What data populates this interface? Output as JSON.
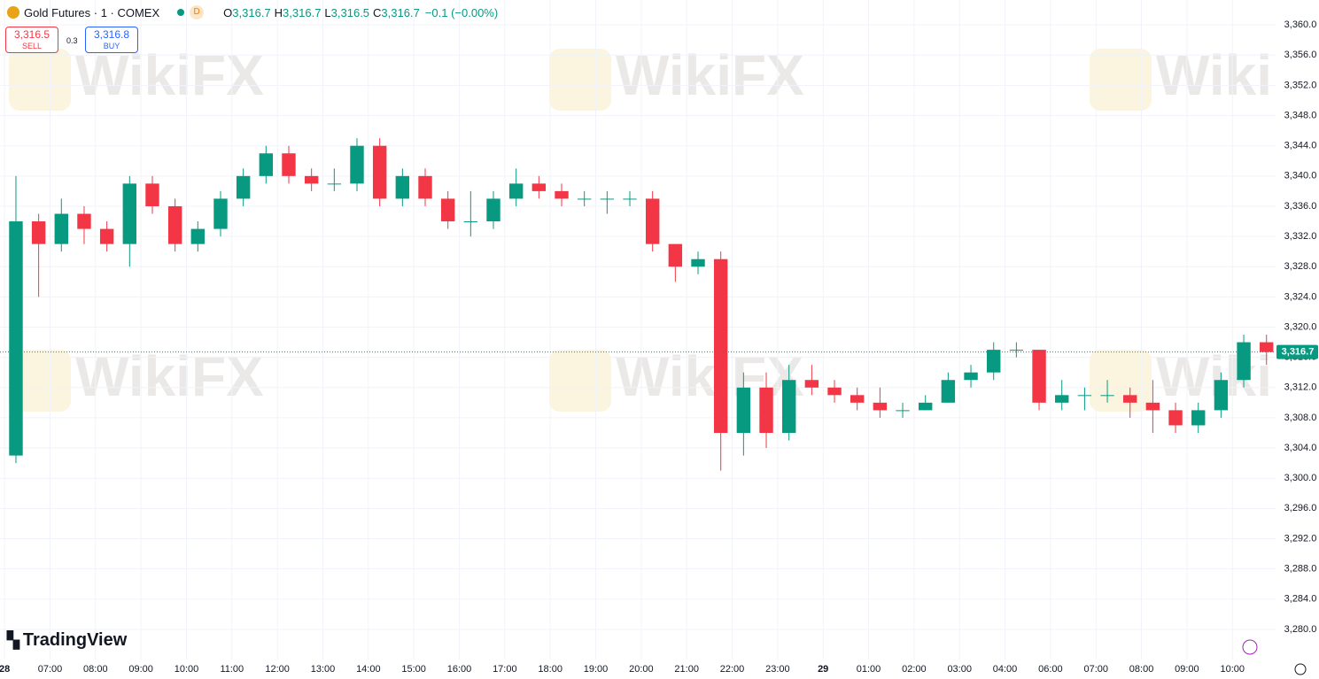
{
  "header": {
    "symbol": "Gold Futures · 1 · COMEX",
    "badge": "D",
    "ohlc": [
      {
        "key": "O",
        "text": "3,316.7"
      },
      {
        "key": "H",
        "text": "3,316.7"
      },
      {
        "key": "L",
        "text": "3,316.5"
      },
      {
        "key": "C",
        "text": "3,316.7"
      }
    ],
    "change": "−0.1 (−0.00%)"
  },
  "trade": {
    "sell_price": "3,316.5",
    "sell": "SELL",
    "spread": "0.3",
    "buy_price": "3,316.8",
    "buy": "BUY"
  },
  "branding": {
    "logo": "TradingView",
    "watermark": "WikiFX"
  },
  "chart_data": {
    "type": "candlestick",
    "up_color": "#089981",
    "down_color": "#f23645",
    "grid": true,
    "x": [
      0.25,
      0.75,
      1.25,
      1.75,
      2.25,
      2.75,
      3.25,
      3.75,
      4.25,
      4.75,
      5.25,
      5.75,
      6.25,
      6.75,
      7.25,
      7.75,
      8.25,
      8.75,
      9.25,
      9.75,
      10.25,
      10.75,
      11.25,
      11.75,
      12.25,
      12.75,
      13.25,
      13.75,
      14.25,
      14.75,
      15.25,
      15.75,
      16.25,
      16.75,
      17.25,
      17.75,
      18.25,
      18.75,
      19.25,
      19.75,
      20.25,
      20.75,
      21.25,
      21.75,
      22.25,
      22.75,
      23.25,
      23.75,
      24.25,
      24.75,
      25.25,
      25.75,
      26.25,
      26.75,
      27.25,
      27.75
    ],
    "open": [
      3303,
      3334,
      3331,
      3335,
      3333,
      3331,
      3339,
      3336,
      3331,
      3333,
      3337,
      3340,
      3343,
      3340,
      3339,
      3339,
      3344,
      3337,
      3340,
      3337,
      3334,
      3334,
      3337,
      3339,
      3338,
      3337,
      3337,
      3337,
      3337,
      3331,
      3328,
      3329,
      3306,
      3312,
      3306,
      3313,
      3312,
      3311,
      3310,
      3309,
      3309,
      3310,
      3313,
      3314,
      3317,
      3317,
      3310,
      3311,
      3311,
      3311,
      3310,
      3309,
      3307,
      3309,
      3313,
      3318
    ],
    "high": [
      3340,
      3335,
      3337,
      3336,
      3334,
      3340,
      3340,
      3337,
      3334,
      3338,
      3341,
      3344,
      3344,
      3341,
      3341,
      3345,
      3345,
      3341,
      3341,
      3338,
      3338,
      3338,
      3341,
      3340,
      3339,
      3338,
      3338,
      3338,
      3338,
      3331,
      3330,
      3330,
      3314,
      3314,
      3315,
      3315,
      3313,
      3312,
      3312,
      3310,
      3311,
      3314,
      3315,
      3318,
      3318,
      3317,
      3313,
      3312,
      3313,
      3312,
      3313,
      3310,
      3310,
      3314,
      3319,
      3319
    ],
    "low": [
      3302,
      3324,
      3330,
      3331,
      3330,
      3328,
      3335,
      3330,
      3330,
      3332,
      3336,
      3339,
      3339,
      3338,
      3338,
      3338,
      3336,
      3336,
      3336,
      3333,
      3332,
      3333,
      3336,
      3337,
      3336,
      3336,
      3335,
      3336,
      3330,
      3326,
      3327,
      3301,
      3303,
      3304,
      3305,
      3311,
      3310,
      3309,
      3308,
      3308,
      3309,
      3310,
      3312,
      3313,
      3316,
      3309,
      3309,
      3309,
      3310,
      3308,
      3306,
      3306,
      3306,
      3308,
      3312,
      3315
    ],
    "close": [
      3334,
      3331,
      3335,
      3333,
      3331,
      3339,
      3336,
      3331,
      3333,
      3337,
      3340,
      3343,
      3340,
      3339,
      3339,
      3344,
      3337,
      3340,
      3337,
      3334,
      3334,
      3337,
      3339,
      3338,
      3337,
      3337,
      3337,
      3337,
      3331,
      3328,
      3329,
      3306,
      3312,
      3306,
      3313,
      3312,
      3311,
      3310,
      3309,
      3309,
      3310,
      3313,
      3314,
      3317,
      3317,
      3310,
      3311,
      3311,
      3311,
      3310,
      3309,
      3307,
      3309,
      3313,
      3318,
      3316.7
    ],
    "last_price": {
      "value": 3316.7,
      "label": "3,316.7"
    },
    "xlim": [
      -0.1,
      27.95
    ],
    "xticks": [
      {
        "value": 0,
        "label": "28"
      },
      {
        "value": 1,
        "label": "07:00"
      },
      {
        "value": 2,
        "label": "08:00"
      },
      {
        "value": 3,
        "label": "09:00"
      },
      {
        "value": 4,
        "label": "10:00"
      },
      {
        "value": 5,
        "label": "11:00"
      },
      {
        "value": 6,
        "label": "12:00"
      },
      {
        "value": 7,
        "label": "13:00"
      },
      {
        "value": 8,
        "label": "14:00"
      },
      {
        "value": 9,
        "label": "15:00"
      },
      {
        "value": 10,
        "label": "16:00"
      },
      {
        "value": 11,
        "label": "17:00"
      },
      {
        "value": 12,
        "label": "18:00"
      },
      {
        "value": 13,
        "label": "19:00"
      },
      {
        "value": 14,
        "label": "20:00"
      },
      {
        "value": 15,
        "label": "21:00"
      },
      {
        "value": 16,
        "label": "22:00"
      },
      {
        "value": 17,
        "label": "23:00"
      },
      {
        "value": 18,
        "label": "29"
      },
      {
        "value": 19,
        "label": "01:00"
      },
      {
        "value": 20,
        "label": "02:00"
      },
      {
        "value": 21,
        "label": "03:00"
      },
      {
        "value": 22,
        "label": "04:00"
      },
      {
        "value": 23,
        "label": "06:00"
      },
      {
        "value": 24,
        "label": "07:00"
      },
      {
        "value": 25,
        "label": "08:00"
      },
      {
        "value": 26,
        "label": "09:00"
      },
      {
        "value": 27,
        "label": "10:00"
      }
    ],
    "ylim": [
      3276.0,
      3363.3
    ],
    "yticks": [
      {
        "value": 3280,
        "label": "3,280.0"
      },
      {
        "value": 3284,
        "label": "3,284.0"
      },
      {
        "value": 3288,
        "label": "3,288.0"
      },
      {
        "value": 3292,
        "label": "3,292.0"
      },
      {
        "value": 3296,
        "label": "3,296.0"
      },
      {
        "value": 3300,
        "label": "3,300.0"
      },
      {
        "value": 3304,
        "label": "3,304.0"
      },
      {
        "value": 3308,
        "label": "3,308.0"
      },
      {
        "value": 3312,
        "label": "3,312.0"
      },
      {
        "value": 3316,
        "label": "3,316.0"
      },
      {
        "value": 3320,
        "label": "3,320.0"
      },
      {
        "value": 3324,
        "label": "3,324.0"
      },
      {
        "value": 3328,
        "label": "3,328.0"
      },
      {
        "value": 3332,
        "label": "3,332.0"
      },
      {
        "value": 3336,
        "label": "3,336.0"
      },
      {
        "value": 3340,
        "label": "3,340.0"
      },
      {
        "value": 3344,
        "label": "3,344.0"
      },
      {
        "value": 3348,
        "label": "3,348.0"
      },
      {
        "value": 3352,
        "label": "3,352.0"
      },
      {
        "value": 3356,
        "label": "3,356.0"
      },
      {
        "value": 3360,
        "label": "3,360.0"
      }
    ]
  }
}
